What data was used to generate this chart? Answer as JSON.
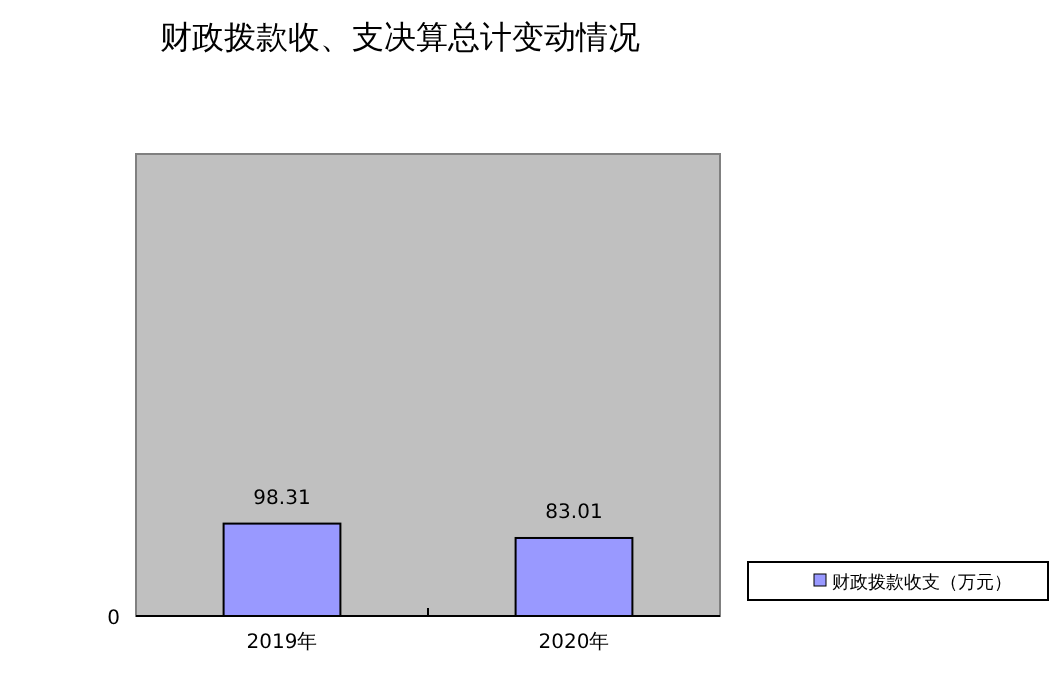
{
  "chart_data": {
    "type": "bar",
    "title": "财政拨款收、支决算总计变动情况",
    "categories": [
      "2019年",
      "2020年"
    ],
    "series": [
      {
        "name": "财政拨款收支（万元）",
        "color": "#9999ff",
        "values": [
          98.31,
          83.01
        ]
      }
    ],
    "annotations": [
      "0"
    ],
    "data_labels": true,
    "legend": "right"
  }
}
